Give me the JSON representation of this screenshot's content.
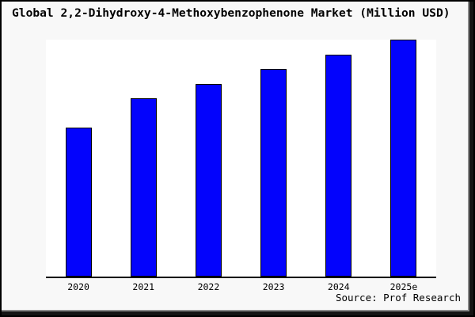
{
  "chart_data": {
    "type": "bar",
    "title": "Global 2,2-Dihydroxy-4-Methoxybenzophenone Market (Million USD)",
    "categories": [
      "2020",
      "2021",
      "2022",
      "2023",
      "2024",
      "2025e"
    ],
    "values_pct_of_max": [
      62.8,
      75.1,
      81.4,
      87.7,
      93.7,
      100.0
    ],
    "unit": "Million USD",
    "ylim": [
      0,
      100
    ],
    "xlabel": "",
    "ylabel": "",
    "y_axis_labels": "none",
    "gridlines": false,
    "legend": "none",
    "source": "Source: Prof Research",
    "bar_color": "#0303fc",
    "bar_edge_color": "#000000"
  },
  "colors": {
    "canvas_background": "#f8f8f8",
    "plot_background": "#ffffff",
    "frame": "#000000",
    "axis_line": "#000000",
    "text": "#000000"
  }
}
